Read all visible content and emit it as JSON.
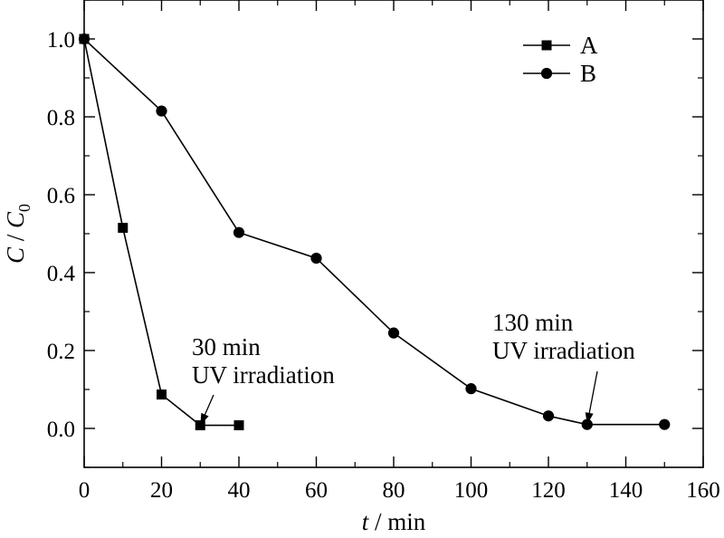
{
  "chart_data": {
    "type": "line",
    "title": "",
    "xlabel": {
      "var": "t",
      "rest": " / min"
    },
    "ylabel": {
      "var": "C",
      "sep": " / ",
      "var2": "C",
      "sub": "0"
    },
    "xlim": [
      0,
      160
    ],
    "ylim": [
      -0.1,
      1.1
    ],
    "xticks": [
      0,
      20,
      40,
      60,
      80,
      100,
      120,
      140,
      160
    ],
    "xtick_labels": [
      "0",
      "20",
      "40",
      "60",
      "80",
      "100",
      "120",
      "140",
      "160"
    ],
    "yticks": [
      0.0,
      0.2,
      0.4,
      0.6,
      0.8,
      1.0
    ],
    "ytick_labels": [
      "0.0",
      "0.2",
      "0.4",
      "0.6",
      "0.8",
      "1.0"
    ],
    "grid": false,
    "legend": "top-right",
    "series": [
      {
        "name": "A",
        "marker": "square",
        "x": [
          0,
          10,
          20,
          30,
          40
        ],
        "y": [
          1.0,
          0.515,
          0.087,
          0.008,
          0.008
        ]
      },
      {
        "name": "B",
        "marker": "circle",
        "x": [
          0,
          20,
          40,
          60,
          80,
          100,
          120,
          130,
          150
        ],
        "y": [
          1.0,
          0.815,
          0.503,
          0.437,
          0.245,
          0.102,
          0.032,
          0.01,
          0.01
        ]
      }
    ],
    "annotations": [
      {
        "lines": [
          "30 min",
          "UV irradiation"
        ],
        "point": [
          30,
          0.008
        ]
      },
      {
        "lines": [
          "130 min",
          "UV irradiation"
        ],
        "point": [
          130,
          0.01
        ]
      }
    ]
  }
}
